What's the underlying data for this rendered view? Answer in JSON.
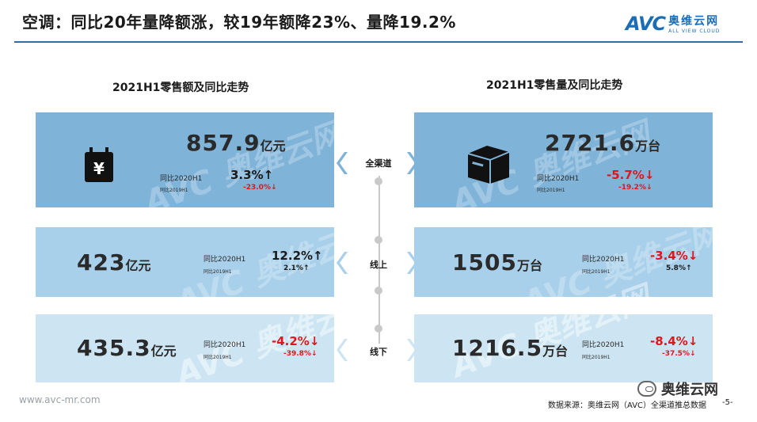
{
  "header": {
    "title": "空调：同比20年量降额涨，较19年额降23%、量降19.2%",
    "logo_mark": "AVC",
    "logo_cn": "奥维云网",
    "logo_en": "ALL VIEW CLOUD"
  },
  "sections": {
    "left_title": "2021H1零售额及同比走势",
    "right_title": "2021H1零售量及同比走势"
  },
  "channels": {
    "all": "全渠道",
    "online": "线上",
    "offline": "线下"
  },
  "labels": {
    "yoy2020": "同比2020H1",
    "yoy2019": "同比2019H1"
  },
  "watermark": "AVC 奥维云网",
  "cards": {
    "sales_all": {
      "num": "857.9",
      "unit": "亿元",
      "pct2020": "3.3%",
      "dir2020": "up",
      "pct2019": "-23.0%",
      "dir2019": "down"
    },
    "vol_all": {
      "num": "2721.6",
      "unit": "万台",
      "pct2020": "-5.7%",
      "dir2020": "down",
      "pct2019": "-19.2%",
      "dir2019": "down"
    },
    "sales_online": {
      "num": "423",
      "unit": "亿元",
      "pct2020": "12.2%",
      "dir2020": "up",
      "pct2019": "2.1%",
      "dir2019": "up"
    },
    "vol_online": {
      "num": "1505",
      "unit": "万台",
      "pct2020": "-3.4%",
      "dir2020": "down",
      "pct2019": "5.8%",
      "dir2019": "up"
    },
    "sales_offline": {
      "num": "435.3",
      "unit": "亿元",
      "pct2020": "-4.2%",
      "dir2020": "down",
      "pct2019": "-39.8%",
      "dir2019": "down"
    },
    "vol_offline": {
      "num": "1216.5",
      "unit": "万台",
      "pct2020": "-8.4%",
      "dir2020": "down",
      "pct2019": "-37.5%",
      "dir2019": "down"
    }
  },
  "icons": {
    "wallet": "yen-wallet-icon",
    "box": "package-box-icon",
    "wechat": "wechat-icon"
  },
  "colors": {
    "card_dark": "#7fb3d8",
    "card_mid": "#a9d0ea",
    "card_light": "#cde5f3",
    "up": "#1a1a1a",
    "down": "#e3141b",
    "accent": "#2f6fa8"
  },
  "footer": {
    "website": "www.avc-mr.com",
    "source": "数据来源：奥维云网（AVC）全渠道推总数据",
    "page": "-5-",
    "wechat_name": "奥维云网"
  }
}
